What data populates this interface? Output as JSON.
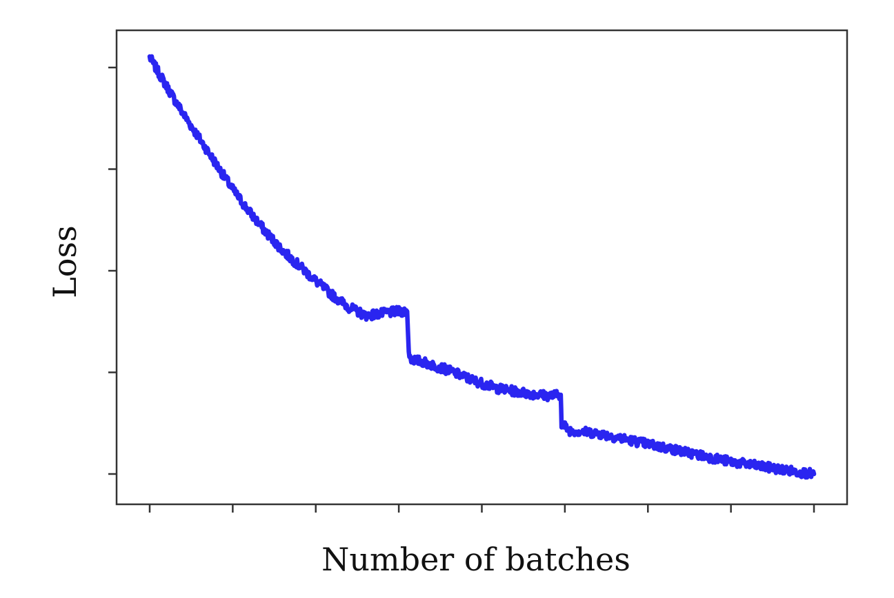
{
  "chart_data": {
    "type": "line",
    "title": "",
    "xlabel": "Number of batches",
    "ylabel": "Loss",
    "x_tick_labels": [],
    "y_tick_labels": [],
    "x_tick_count": 9,
    "y_tick_count": 5,
    "xlim": [
      0,
      8
    ],
    "ylim": [
      -0.3,
      4.3
    ],
    "grid": false,
    "legend": "none",
    "series": [
      {
        "color": "#2a25f0",
        "x": [
          0,
          0.2,
          0.4,
          0.6,
          0.8,
          1.0,
          1.2,
          1.4,
          1.6,
          1.8,
          2.0,
          2.2,
          2.4,
          2.6,
          2.8,
          3.0,
          3.1,
          3.12,
          3.15,
          3.3,
          3.6,
          3.9,
          4.2,
          4.5,
          4.8,
          4.95,
          4.96,
          5.05,
          5.4,
          5.8,
          6.2,
          6.6,
          7.0,
          7.4,
          7.8,
          8.0
        ],
        "y": [
          4.1,
          3.82,
          3.55,
          3.3,
          3.05,
          2.8,
          2.58,
          2.38,
          2.2,
          2.05,
          1.9,
          1.76,
          1.64,
          1.56,
          1.58,
          1.6,
          1.6,
          1.2,
          1.13,
          1.1,
          1.02,
          0.92,
          0.84,
          0.8,
          0.77,
          0.78,
          0.5,
          0.43,
          0.4,
          0.33,
          0.26,
          0.19,
          0.12,
          0.07,
          0.02,
          0.0
        ]
      }
    ]
  }
}
